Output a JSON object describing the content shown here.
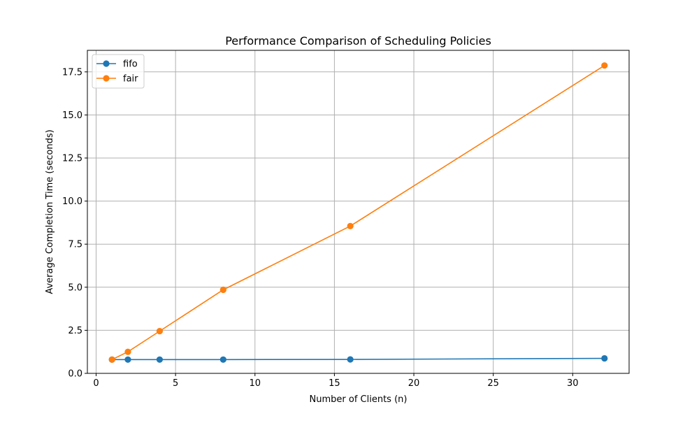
{
  "chart_data": {
    "type": "line",
    "title": "Performance Comparison of Scheduling Policies",
    "xlabel": "Number of Clients (n)",
    "ylabel": "Average Completion Time (seconds)",
    "xlim": [
      -0.55,
      33.55
    ],
    "ylim": [
      0,
      18.75
    ],
    "x_ticks": [
      0,
      5,
      10,
      15,
      20,
      25,
      30
    ],
    "y_ticks": [
      0.0,
      2.5,
      5.0,
      7.5,
      10.0,
      12.5,
      15.0,
      17.5
    ],
    "x_tick_labels": [
      "0",
      "5",
      "10",
      "15",
      "20",
      "25",
      "30"
    ],
    "y_tick_labels": [
      "0.0",
      "2.5",
      "5.0",
      "7.5",
      "10.0",
      "12.5",
      "15.0",
      "17.5"
    ],
    "grid": true,
    "legend_position": "top-left",
    "x": [
      1,
      2,
      4,
      8,
      16,
      32
    ],
    "series": [
      {
        "name": "fifo",
        "color": "#1f77b4",
        "values": [
          0.8,
          0.8,
          0.8,
          0.8,
          0.81,
          0.87
        ]
      },
      {
        "name": "fair",
        "color": "#ff7f0e",
        "values": [
          0.8,
          1.25,
          2.45,
          4.85,
          8.55,
          17.87
        ]
      }
    ]
  }
}
